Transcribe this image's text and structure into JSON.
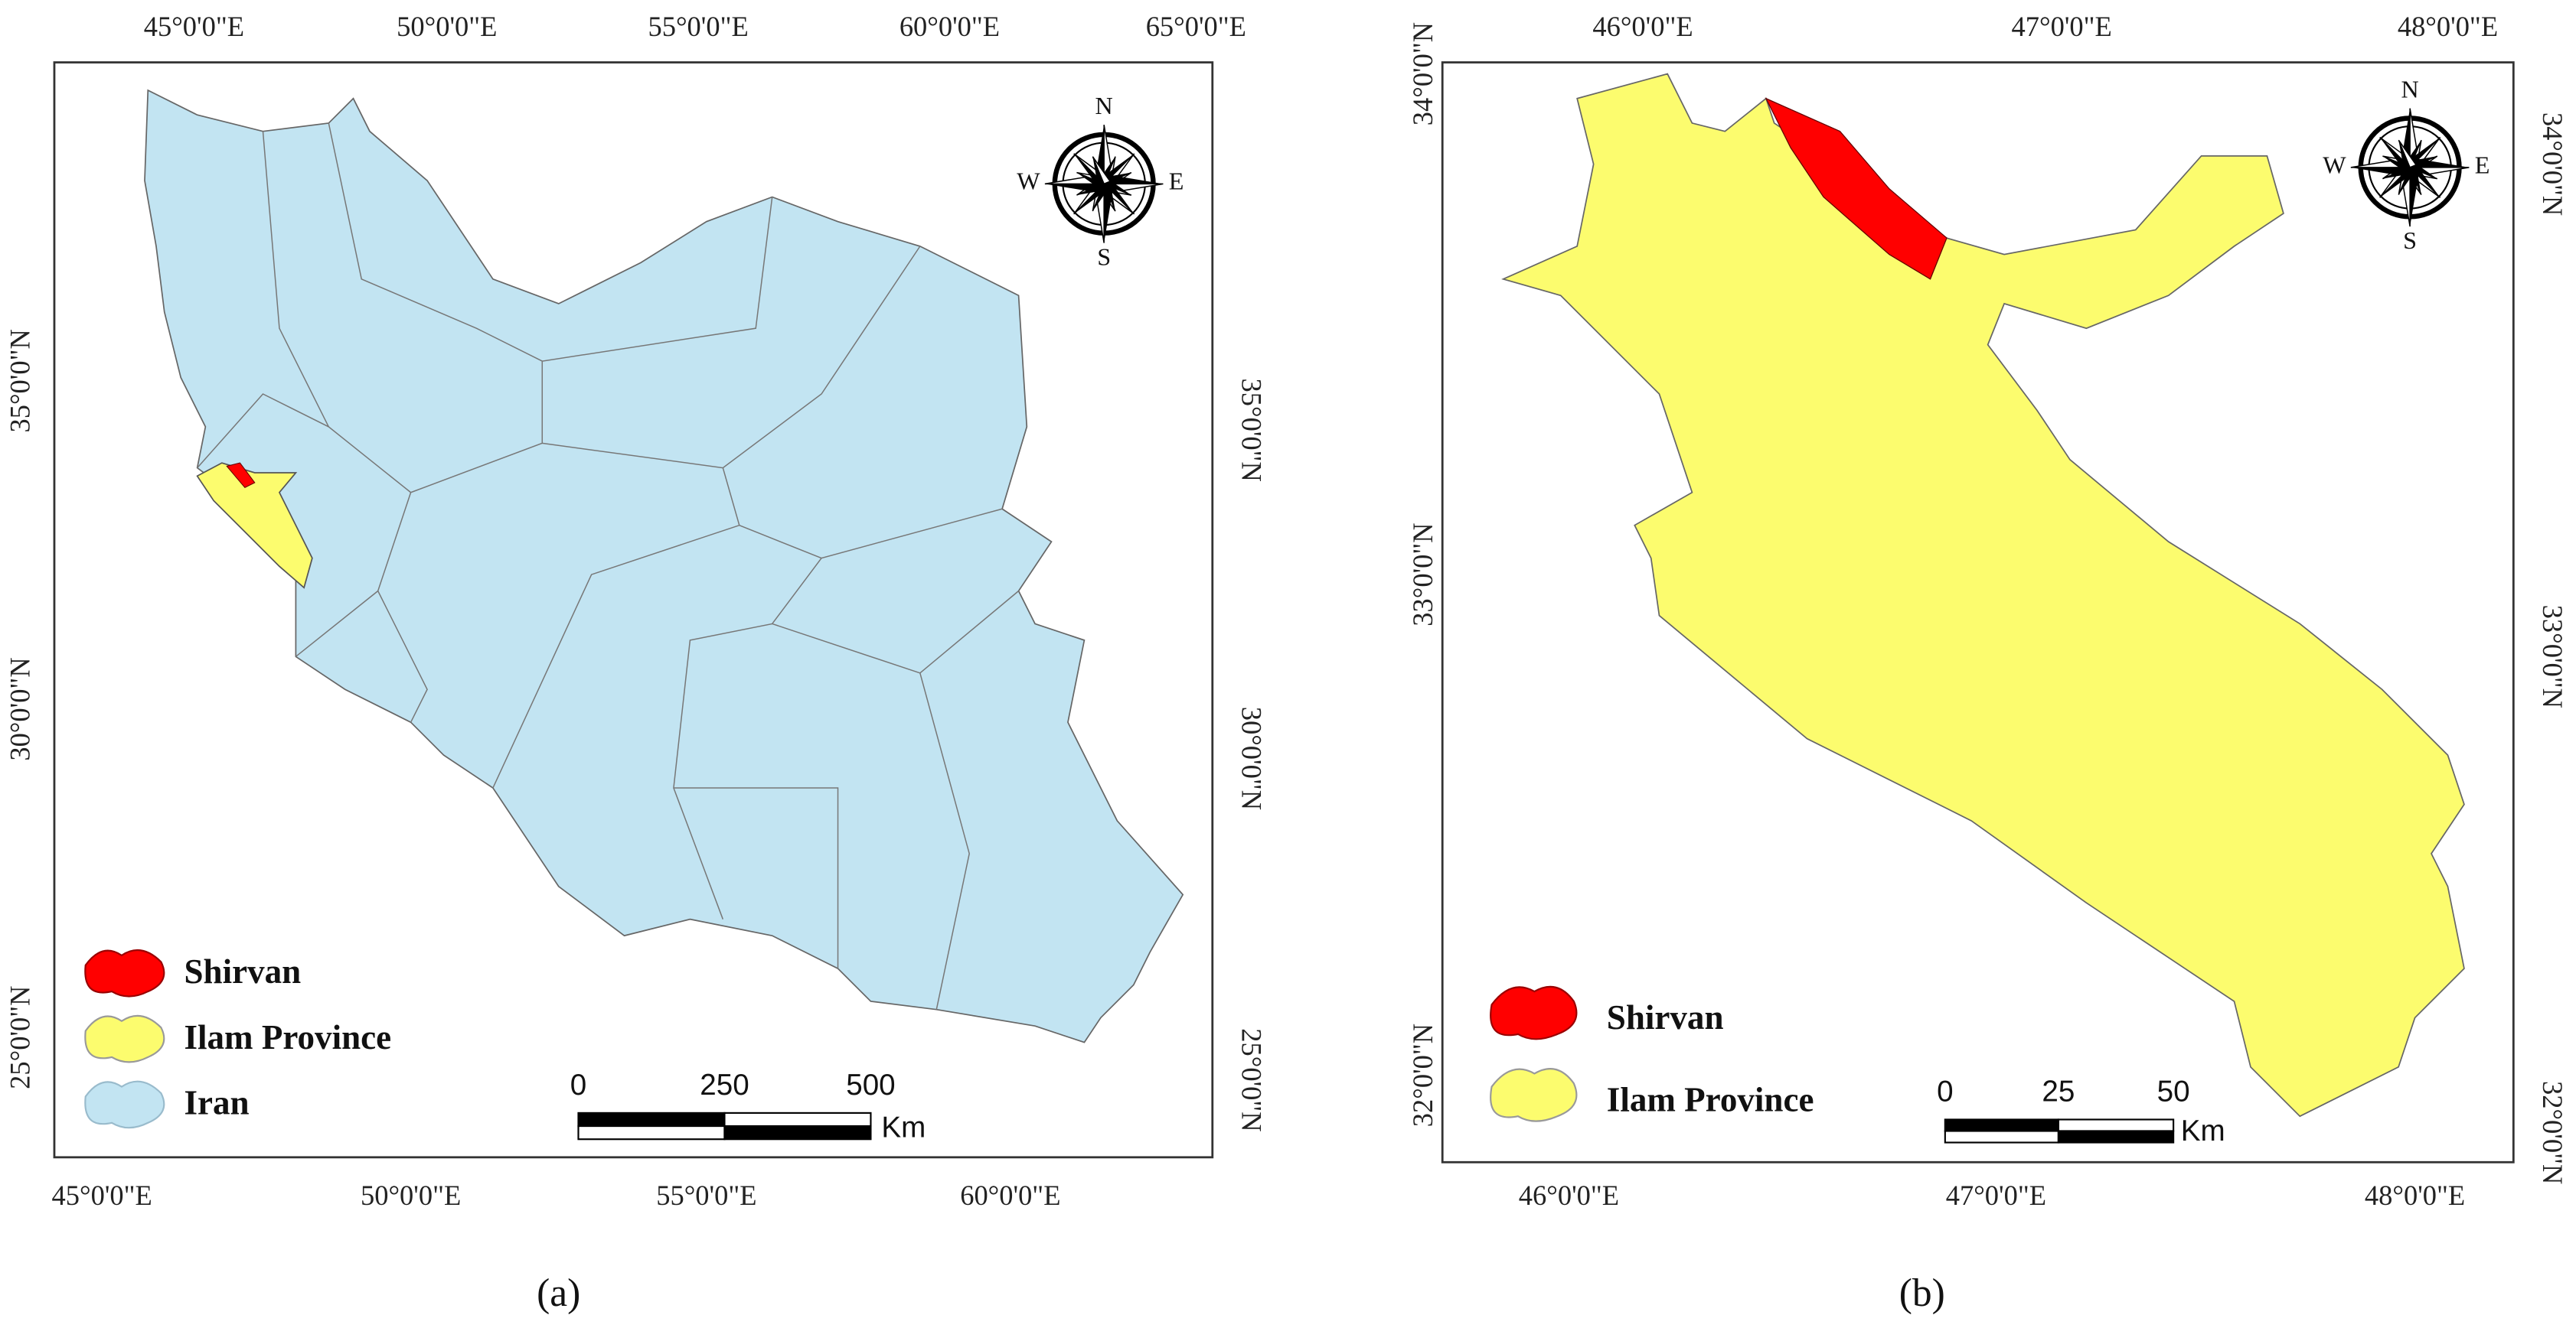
{
  "panels": [
    {
      "top_labels": [
        "45°0'0\"E",
        "50°0'0\"E",
        "55°0'0\"E",
        "60°0'0\"E",
        "65°0'0\"E"
      ],
      "bottom_labels": [
        "45°0'0\"E",
        "50°0'0\"E",
        "55°0'0\"E",
        "60°0'0\"E"
      ],
      "left_labels": [
        "35°0'0\"N",
        "30°0'0\"N",
        "25°0'0\"N"
      ],
      "right_labels": [
        "35°0'0\"N",
        "30°0'0\"N",
        "25°0'0\"N"
      ],
      "compass": {
        "n": "N",
        "s": "S",
        "e": "E",
        "w": "W"
      },
      "legend": [
        "Shirvan",
        "Ilam Province",
        "Iran"
      ],
      "scale_bar": {
        "ticks": [
          "0",
          "250",
          "500"
        ],
        "unit": "Km"
      },
      "caption": "(a)"
    },
    {
      "top_labels": [
        "46°0'0\"E",
        "47°0'0\"E",
        "48°0'0\"E"
      ],
      "bottom_labels": [
        "46°0'0\"E",
        "47°0'0\"E",
        "48°0'0\"E"
      ],
      "left_labels": [
        "34°0'0\"N",
        "33°0'0\"N",
        "32°0'0\"N"
      ],
      "right_labels": [
        "34°0'0\"N",
        "33°0'0\"N",
        "32°0'0\"N"
      ],
      "compass": {
        "n": "N",
        "s": "S",
        "e": "E",
        "w": "W"
      },
      "legend": [
        "Shirvan",
        "Ilam Province"
      ],
      "scale_bar": {
        "ticks": [
          "0",
          "25",
          "50"
        ],
        "unit": "Km"
      },
      "caption": "(b)"
    }
  ]
}
